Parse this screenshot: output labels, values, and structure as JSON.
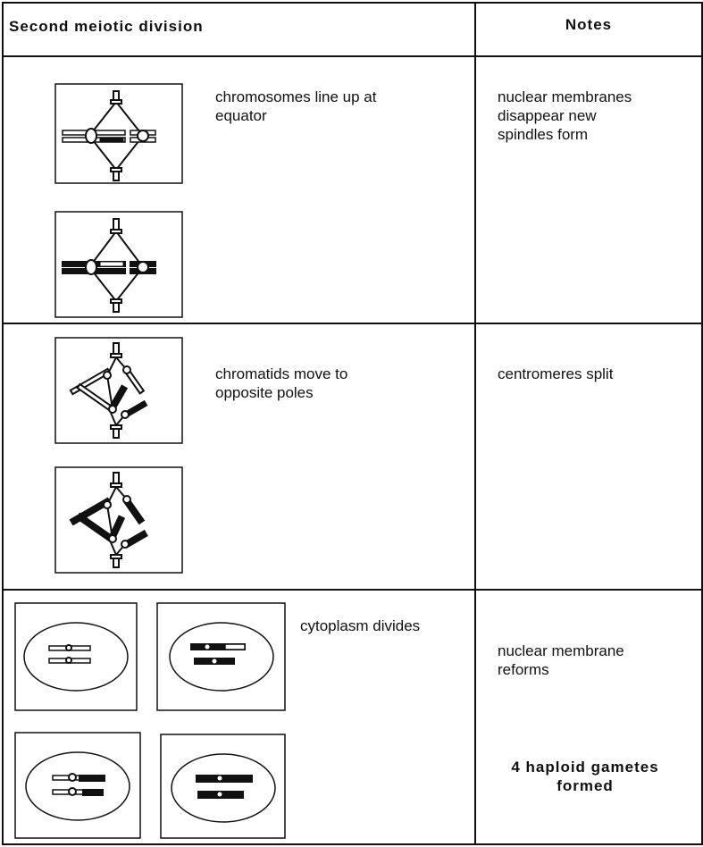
{
  "header": {
    "title": "Second meiotic division",
    "notes": "Notes"
  },
  "rows": [
    {
      "description": "chromosomes line up at equator",
      "notes": [
        "nuclear membranes disappear new spindles form"
      ]
    },
    {
      "description": "chromatids move to opposite poles",
      "notes": [
        "centromeres split"
      ]
    },
    {
      "description": "cytoplasm divides",
      "notes": [
        "nuclear membrane reforms",
        "4 haploid gametes formed"
      ]
    }
  ]
}
